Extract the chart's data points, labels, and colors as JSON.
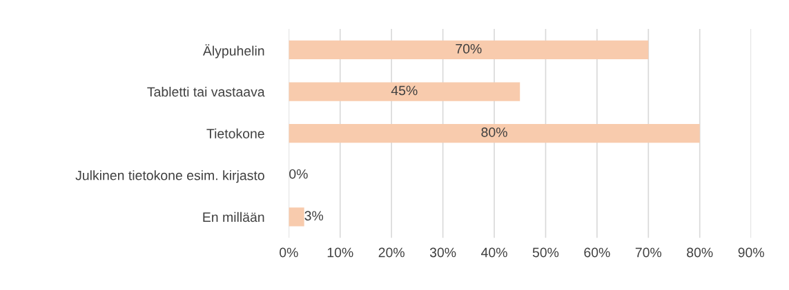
{
  "chart_data": {
    "type": "bar",
    "orientation": "horizontal",
    "categories": [
      "Älypuhelin",
      "Tabletti tai vastaava",
      "Tietokone",
      "Julkinen tietokone esim. kirjasto",
      "En millään"
    ],
    "values": [
      70,
      45,
      80,
      0,
      3
    ],
    "color": "#f8cbad",
    "value_labels": [
      "70%",
      "45%",
      "80%",
      "0%",
      "3%"
    ],
    "xlim": [
      0,
      90
    ],
    "xticks": [
      {
        "value": 0,
        "label": "0%"
      },
      {
        "value": 10,
        "label": "10%"
      },
      {
        "value": 20,
        "label": "20%"
      },
      {
        "value": 30,
        "label": "30%"
      },
      {
        "value": 40,
        "label": "40%"
      },
      {
        "value": 50,
        "label": "50%"
      },
      {
        "value": 60,
        "label": "60%"
      },
      {
        "value": 70,
        "label": "70%"
      },
      {
        "value": 80,
        "label": "80%"
      },
      {
        "value": 90,
        "label": "90%"
      }
    ],
    "grid": "x"
  }
}
